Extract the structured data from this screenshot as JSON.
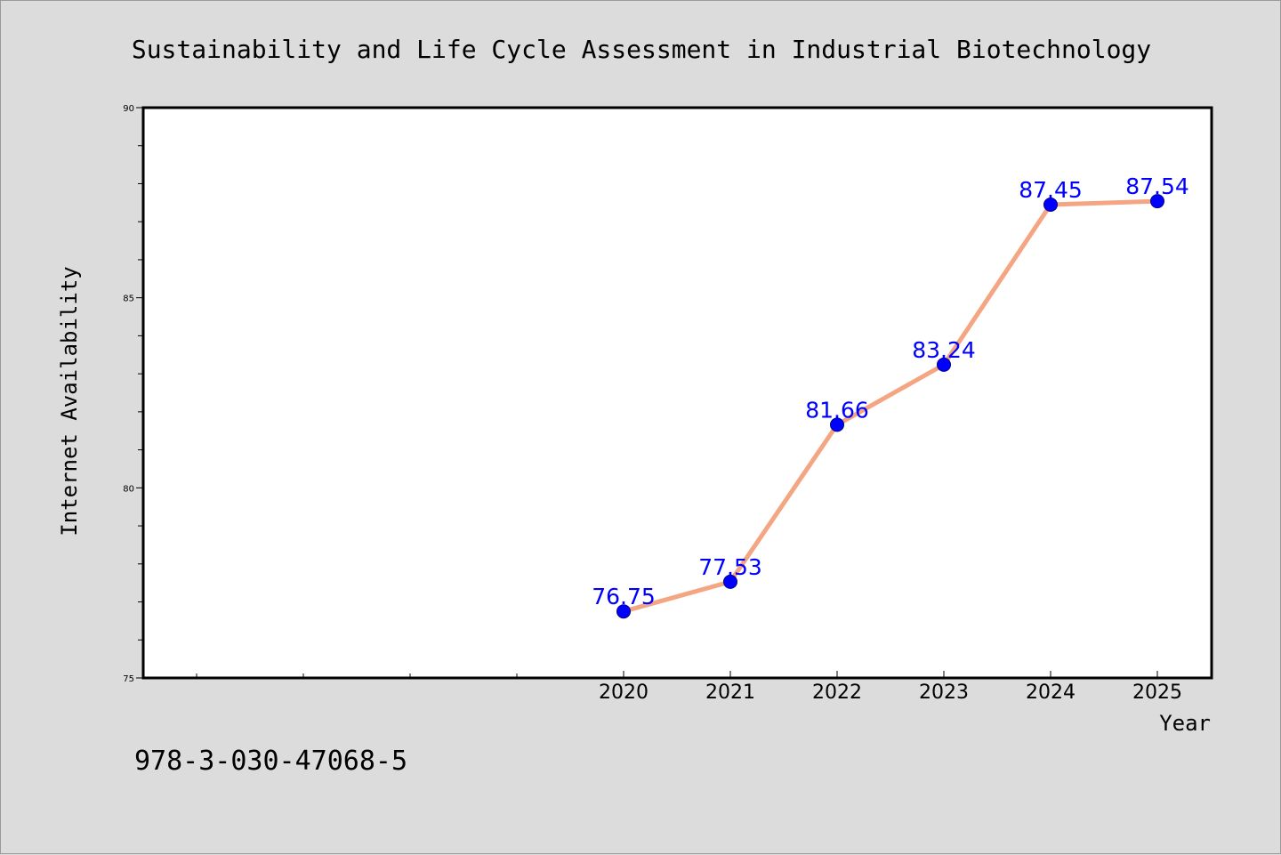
{
  "chart_data": {
    "type": "line",
    "title": "Sustainability and Life Cycle Assessment in Industrial Biotechnology",
    "xlabel": "Year",
    "ylabel": "Internet Availability",
    "x": [
      "2020",
      "2021",
      "2022",
      "2023",
      "2024",
      "2025"
    ],
    "values": [
      76.75,
      77.53,
      81.66,
      83.24,
      87.45,
      87.54
    ],
    "data_labels": [
      "76.75",
      "77.53",
      "81.66",
      "83.24",
      "87.45",
      "87.54"
    ],
    "ylim": [
      75,
      90
    ],
    "yticks": [
      "75",
      "80",
      "85",
      "90"
    ],
    "grid": false,
    "line_color": "#f4a582",
    "marker_color": "#0000ff",
    "label_color": "#0000ff",
    "footnote": "978-3-030-47068-5"
  }
}
